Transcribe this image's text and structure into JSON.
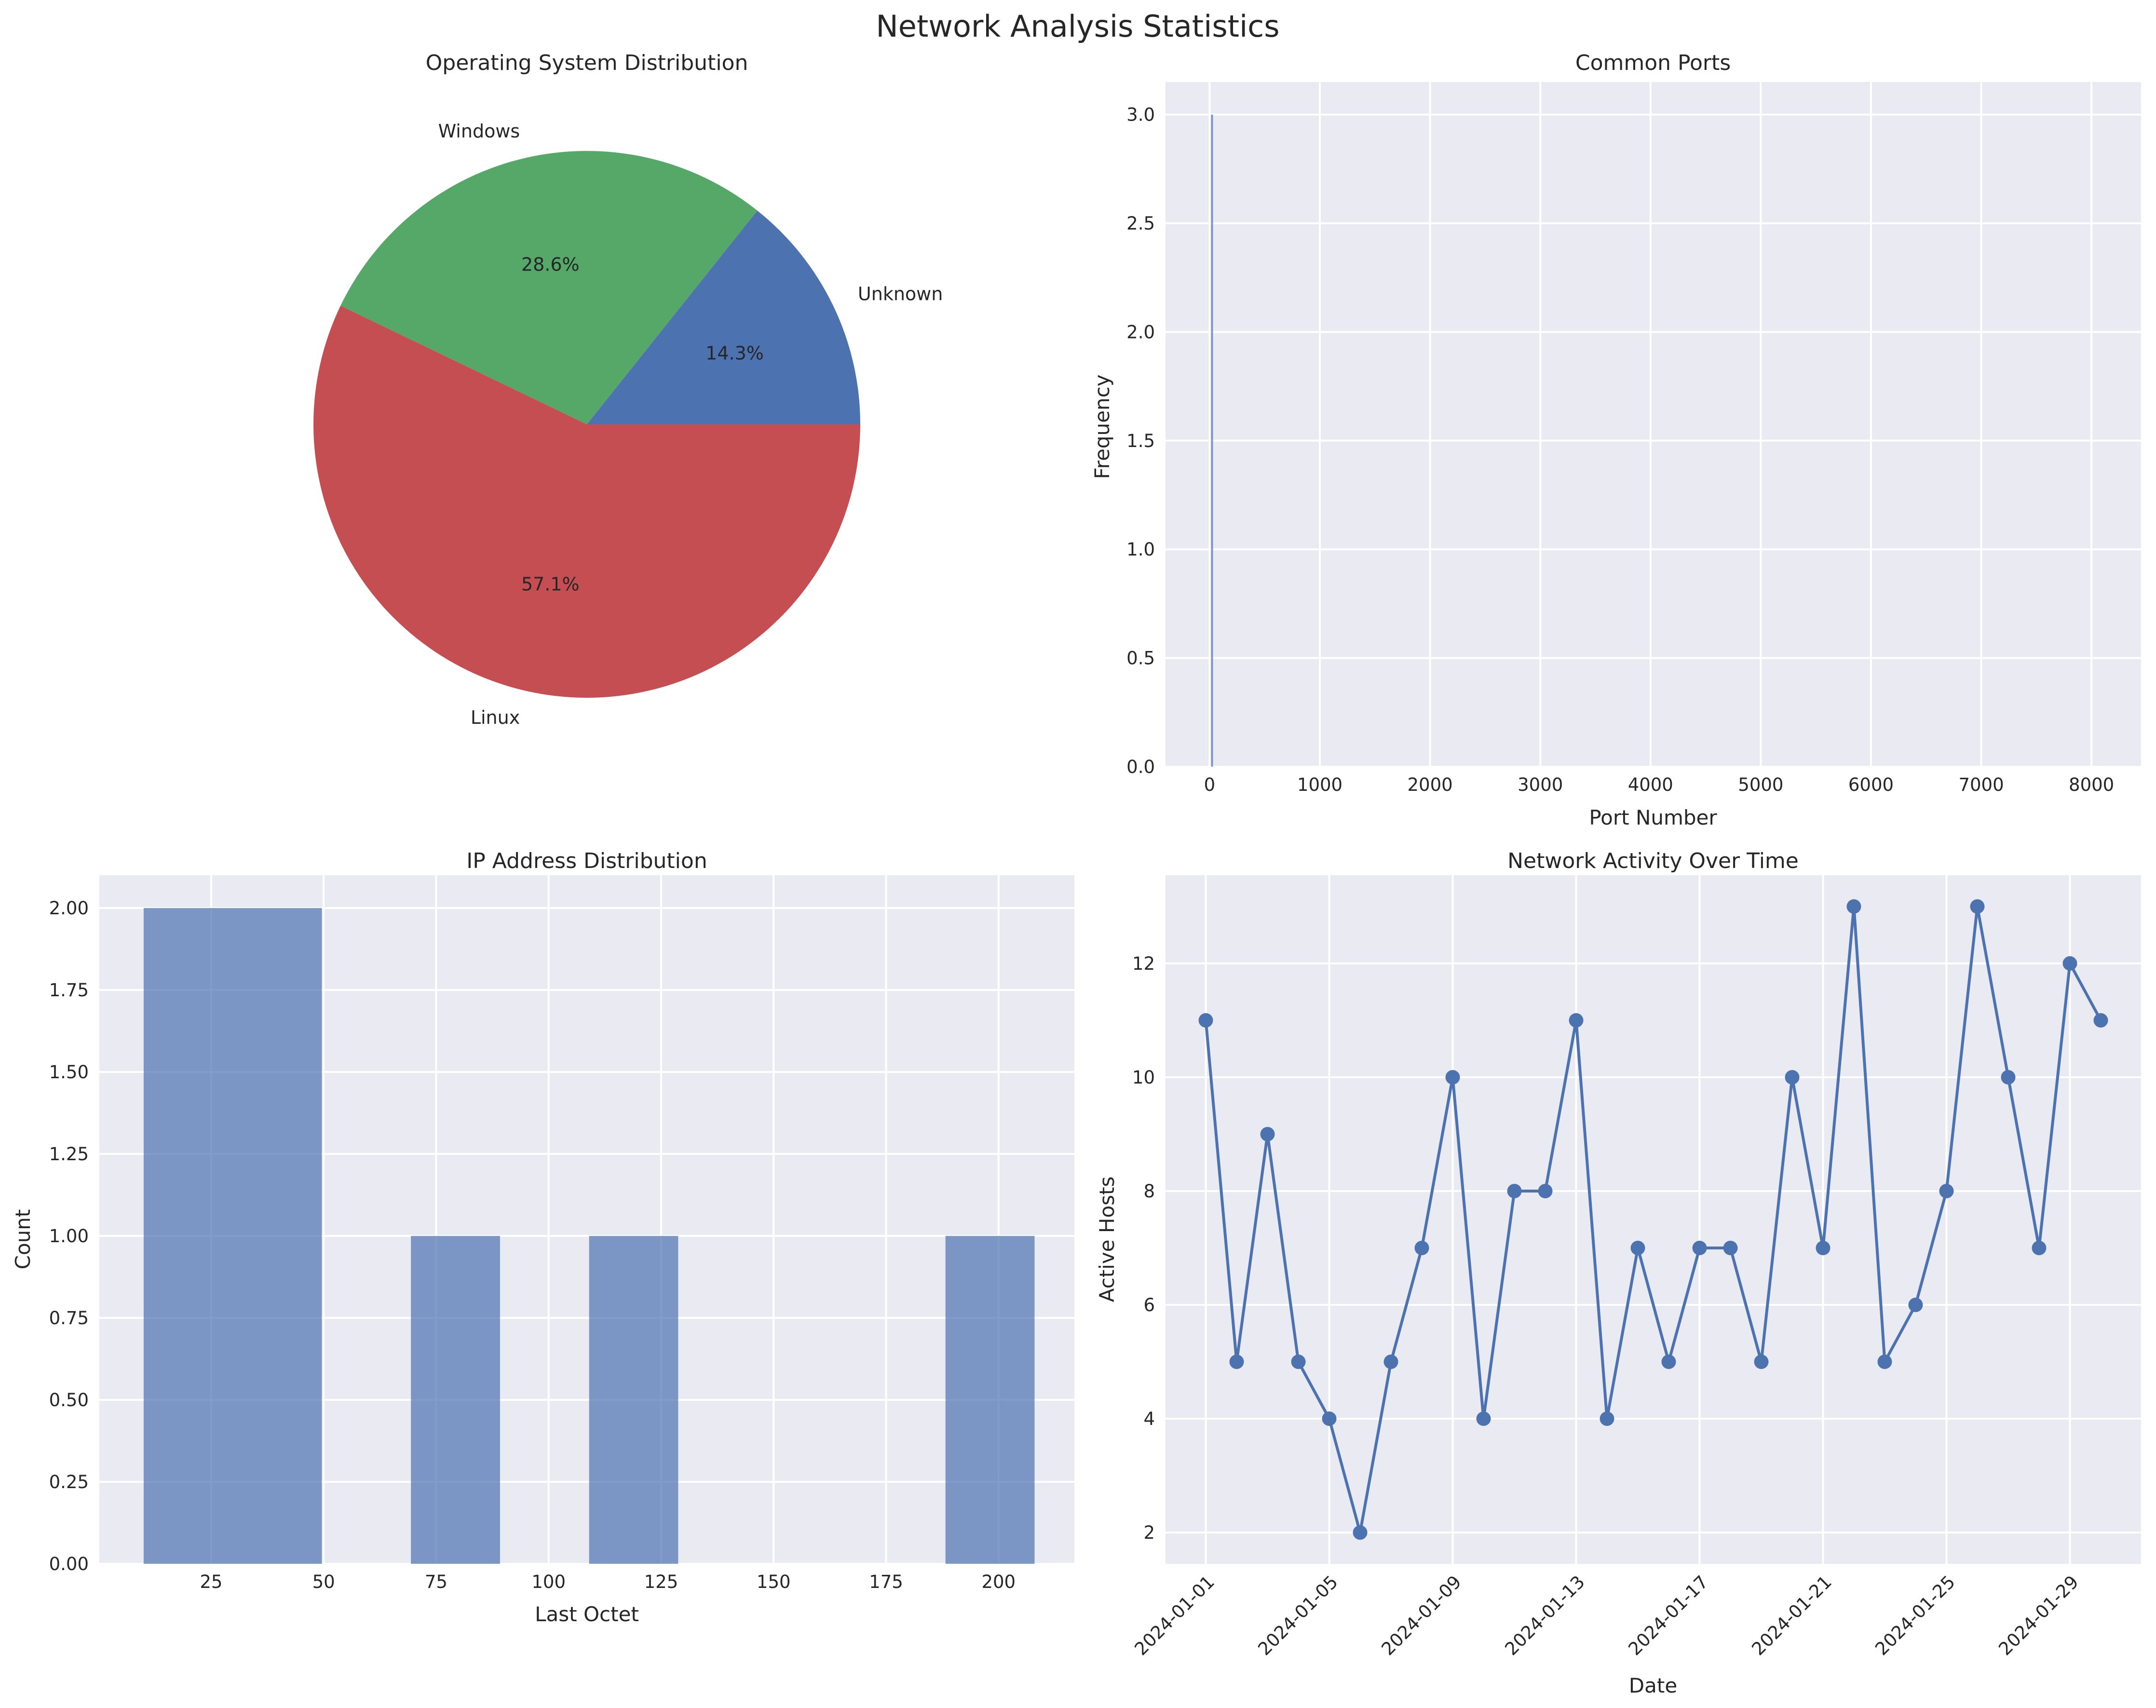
{
  "figure": {
    "title": "Network Analysis Statistics"
  },
  "chart_data": [
    {
      "type": "pie",
      "title": "Operating System Distribution",
      "labels": [
        "Unknown",
        "Windows",
        "Linux"
      ],
      "values": [
        1,
        2,
        4
      ],
      "percent_labels": [
        "14.3%",
        "28.6%",
        "57.1%"
      ],
      "colors": [
        "#4C72B0",
        "#55A868",
        "#C44E52"
      ],
      "start_angle_deg": 0,
      "direction": "counterclockwise"
    },
    {
      "type": "bar",
      "title": "Common Ports",
      "xlabel": "Port Number",
      "ylabel": "Frequency",
      "xlim": [
        -400,
        8450
      ],
      "ylim": [
        0,
        3.15
      ],
      "xticks": [
        0,
        1000,
        2000,
        3000,
        4000,
        5000,
        6000,
        7000,
        8000
      ],
      "xtick_labels": [
        "0",
        "1000",
        "2000",
        "3000",
        "4000",
        "5000",
        "6000",
        "7000",
        "8000"
      ],
      "yticks": [
        0,
        0.5,
        1.0,
        1.5,
        2.0,
        2.5,
        3.0
      ],
      "ytick_labels": [
        "0.0",
        "0.5",
        "1.0",
        "1.5",
        "2.0",
        "2.5",
        "3.0"
      ],
      "bars": [
        {
          "x": 22,
          "value": 3
        }
      ],
      "color": "#4C72B0",
      "grid": true
    },
    {
      "type": "bar",
      "title": "IP Address Distribution",
      "xlabel": "Last Octet",
      "ylabel": "Count",
      "xlim": [
        0.15,
        216.85
      ],
      "ylim": [
        0,
        2.1
      ],
      "xticks": [
        25,
        50,
        75,
        100,
        125,
        150,
        175,
        200
      ],
      "xtick_labels": [
        "25",
        "50",
        "75",
        "100",
        "125",
        "150",
        "175",
        "200"
      ],
      "yticks": [
        0,
        0.25,
        0.5,
        0.75,
        1.0,
        1.25,
        1.5,
        1.75,
        2.0
      ],
      "ytick_labels": [
        "0.00",
        "0.25",
        "0.50",
        "0.75",
        "1.00",
        "1.25",
        "1.50",
        "1.75",
        "2.00"
      ],
      "bins": [
        {
          "x0": 10,
          "x1": 49.6,
          "value": 2
        },
        {
          "x0": 69.4,
          "x1": 89.2,
          "value": 1
        },
        {
          "x0": 109,
          "x1": 128.8,
          "value": 1
        },
        {
          "x0": 188.2,
          "x1": 208,
          "value": 1
        }
      ],
      "color": "#4C72B0",
      "grid": true
    },
    {
      "type": "line",
      "title": "Network Activity Over Time",
      "xlabel": "Date",
      "ylabel": "Active Hosts",
      "ylim": [
        1.45,
        13.55
      ],
      "yticks": [
        2,
        4,
        6,
        8,
        10,
        12
      ],
      "ytick_labels": [
        "2",
        "4",
        "6",
        "8",
        "10",
        "12"
      ],
      "x": [
        "2024-01-01",
        "2024-01-02",
        "2024-01-03",
        "2024-01-04",
        "2024-01-05",
        "2024-01-06",
        "2024-01-07",
        "2024-01-08",
        "2024-01-09",
        "2024-01-10",
        "2024-01-11",
        "2024-01-12",
        "2024-01-13",
        "2024-01-14",
        "2024-01-15",
        "2024-01-16",
        "2024-01-17",
        "2024-01-18",
        "2024-01-19",
        "2024-01-20",
        "2024-01-21",
        "2024-01-22",
        "2024-01-23",
        "2024-01-24",
        "2024-01-25",
        "2024-01-26",
        "2024-01-27",
        "2024-01-28",
        "2024-01-29",
        "2024-01-30"
      ],
      "series": [
        {
          "values": [
            11,
            5,
            9,
            5,
            4,
            2,
            5,
            7,
            10,
            4,
            8,
            8,
            11,
            4,
            7,
            5,
            7,
            7,
            5,
            10,
            7,
            13,
            5,
            6,
            8,
            13,
            10,
            7,
            12,
            11
          ]
        }
      ],
      "xtick_labels": [
        "2024-01-01",
        "2024-01-05",
        "2024-01-09",
        "2024-01-13",
        "2024-01-17",
        "2024-01-21",
        "2024-01-25",
        "2024-01-29"
      ],
      "color": "#4C72B0",
      "marker": "circle",
      "grid": true
    }
  ]
}
